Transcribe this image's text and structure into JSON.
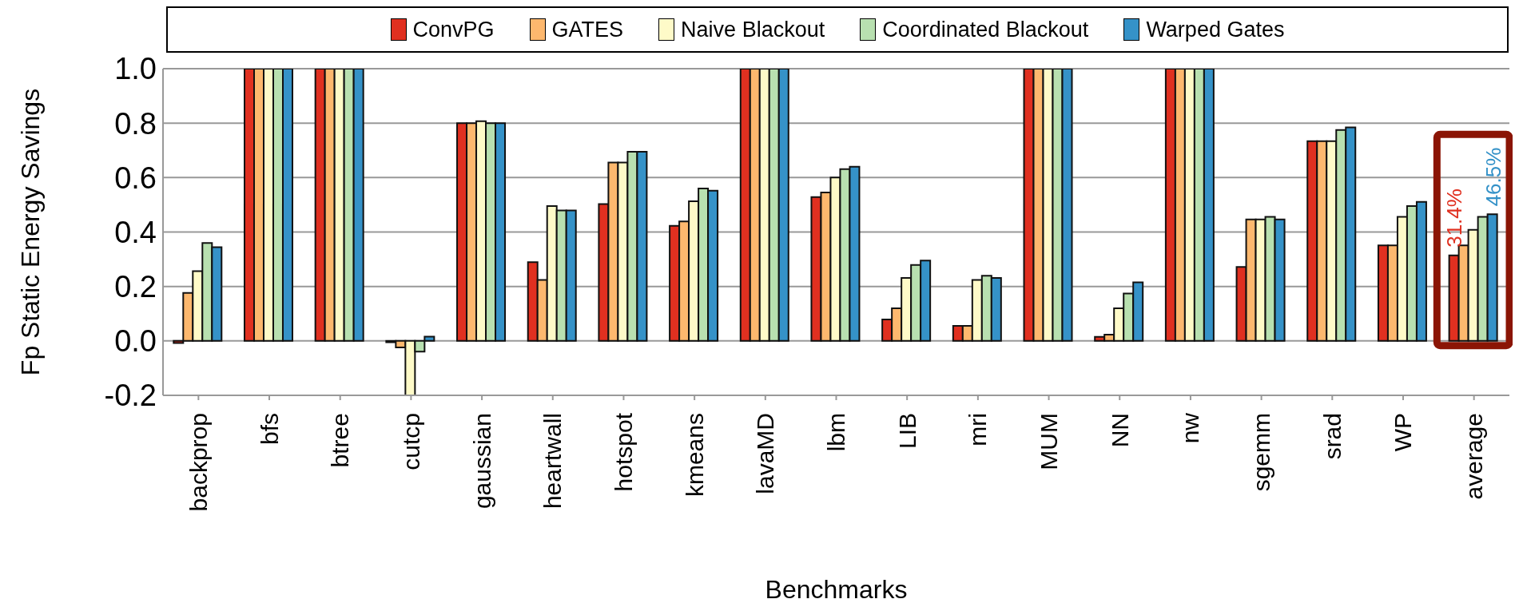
{
  "chart_data": {
    "type": "bar",
    "xlabel": "Benchmarks",
    "ylabel": "Fp Static Energy Savings",
    "categories": [
      "backprop",
      "bfs",
      "btree",
      "cutcp",
      "gaussian",
      "heartwall",
      "hotspot",
      "kmeans",
      "lavaMD",
      "lbm",
      "LIB",
      "mri",
      "MUM",
      "NN",
      "nw",
      "sgemm",
      "srad",
      "WP",
      "average"
    ],
    "series": [
      {
        "name": "ConvPG",
        "color": "#e03020",
        "values": [
          -0.008,
          1,
          1,
          -0.005,
          0.8,
          0.289,
          0.503,
          0.423,
          1,
          0.528,
          0.079,
          0.055,
          1,
          0.015,
          1,
          0.272,
          0.734,
          0.351,
          0.314
        ]
      },
      {
        "name": "GATES",
        "color": "#fdb86e",
        "values": [
          0.176,
          1,
          1,
          -0.024,
          0.8,
          0.224,
          0.655,
          0.439,
          1,
          0.545,
          0.12,
          0.055,
          1,
          0.023,
          1,
          0.446,
          0.734,
          0.351,
          0.351
        ]
      },
      {
        "name": "Naive Blackout",
        "color": "#fefac8",
        "values": [
          0.256,
          1,
          1,
          -0.2,
          0.807,
          0.495,
          0.655,
          0.513,
          1,
          0.6,
          0.231,
          0.224,
          1,
          0.12,
          1,
          0.446,
          0.734,
          0.456,
          0.408
        ]
      },
      {
        "name": "Coordinated Blackout",
        "color": "#b8e0b0",
        "values": [
          0.36,
          1,
          1,
          -0.039,
          0.8,
          0.479,
          0.695,
          0.56,
          1,
          0.631,
          0.279,
          0.239,
          1,
          0.174,
          1,
          0.456,
          0.775,
          0.495,
          0.456
        ]
      },
      {
        "name": "Warped Gates",
        "color": "#3592c8",
        "values": [
          0.344,
          1,
          1,
          0.016,
          0.8,
          0.479,
          0.695,
          0.552,
          1,
          0.64,
          0.295,
          0.231,
          1,
          0.215,
          1,
          0.446,
          0.784,
          0.511,
          0.465
        ]
      }
    ],
    "ylim": [
      -0.2,
      1
    ],
    "yticks": [
      {
        "value": -0.2,
        "label": "-0.2"
      },
      {
        "value": 0,
        "label": "0.0"
      },
      {
        "value": 0.2,
        "label": "0.2"
      },
      {
        "value": 0.4,
        "label": "0.4"
      },
      {
        "value": 0.6,
        "label": "0.6"
      },
      {
        "value": 0.8,
        "label": "0.8"
      },
      {
        "value": 1,
        "label": "1.0"
      }
    ],
    "grid": "y",
    "legend": "top",
    "annotations": [
      "31.4%",
      "46.5%"
    ]
  }
}
